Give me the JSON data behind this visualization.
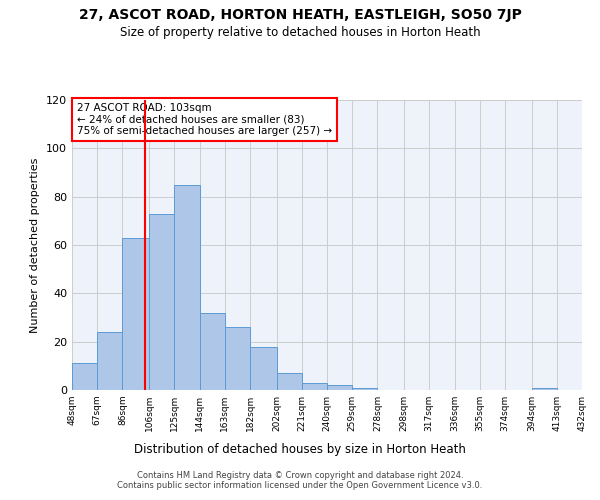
{
  "title": "27, ASCOT ROAD, HORTON HEATH, EASTLEIGH, SO50 7JP",
  "subtitle": "Size of property relative to detached houses in Horton Heath",
  "xlabel": "Distribution of detached houses by size in Horton Heath",
  "ylabel": "Number of detached properties",
  "bar_values": [
    11,
    24,
    63,
    73,
    85,
    32,
    26,
    18,
    7,
    3,
    2,
    1,
    0,
    0,
    0,
    0,
    0,
    0,
    1,
    0
  ],
  "bin_edges": [
    48,
    67,
    86,
    106,
    125,
    144,
    163,
    182,
    202,
    221,
    240,
    259,
    278,
    298,
    317,
    336,
    355,
    374,
    394,
    413,
    432
  ],
  "tick_labels": [
    "48sqm",
    "67sqm",
    "86sqm",
    "106sqm",
    "125sqm",
    "144sqm",
    "163sqm",
    "182sqm",
    "202sqm",
    "221sqm",
    "240sqm",
    "259sqm",
    "278sqm",
    "298sqm",
    "317sqm",
    "336sqm",
    "355sqm",
    "374sqm",
    "394sqm",
    "413sqm",
    "432sqm"
  ],
  "bar_color": "#aec6e8",
  "bar_edge_color": "#5b9bd5",
  "grid_color": "#cccccc",
  "bg_color": "#eef2fb",
  "red_line_x": 103,
  "annotation_text": "27 ASCOT ROAD: 103sqm\n← 24% of detached houses are smaller (83)\n75% of semi-detached houses are larger (257) →",
  "ylim": [
    0,
    120
  ],
  "yticks": [
    0,
    20,
    40,
    60,
    80,
    100,
    120
  ],
  "footer_line1": "Contains HM Land Registry data © Crown copyright and database right 2024.",
  "footer_line2": "Contains public sector information licensed under the Open Government Licence v3.0."
}
